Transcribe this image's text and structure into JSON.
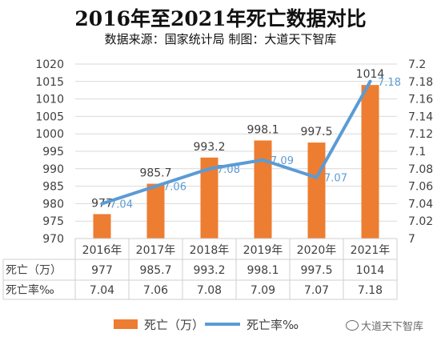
{
  "title": "2016年至2021年死亡数据对比",
  "subtitle": "数据来源：国家统计局    制图：大道天下智库",
  "watermark": "大道天下智库",
  "colors": {
    "bar": "#ed7d31",
    "line": "#5b9bd5",
    "line_label": "#5b9bd5",
    "grid": "#d9d9d9",
    "text": "#404040"
  },
  "chart_data": {
    "type": "bar",
    "categories": [
      "2016年",
      "2017年",
      "2018年",
      "2019年",
      "2020年",
      "2021年"
    ],
    "series": [
      {
        "name": "死亡（万）",
        "type": "bar",
        "axis": "left",
        "values": [
          977,
          985.7,
          993.2,
          998.1,
          997.5,
          1014
        ],
        "labels": [
          "977",
          "985.7",
          "993.2",
          "998.1",
          "997.5",
          "1014"
        ]
      },
      {
        "name": "死亡率‰",
        "type": "line",
        "axis": "right",
        "values": [
          7.04,
          7.06,
          7.08,
          7.09,
          7.07,
          7.18
        ],
        "labels": [
          "7.04",
          "7.06",
          "7.08",
          "7.09",
          "7.07",
          "7.18"
        ]
      }
    ],
    "y_left": {
      "range": [
        970,
        1020
      ],
      "ticks": [
        "970",
        "975",
        "980",
        "985",
        "990",
        "995",
        "1000",
        "1005",
        "1010",
        "1015",
        "1020"
      ]
    },
    "y_right": {
      "range": [
        7,
        7.2
      ],
      "ticks": [
        "7",
        "7.02",
        "7.04",
        "7.06",
        "7.08",
        "7.1",
        "7.12",
        "7.14",
        "7.16",
        "7.18",
        "7.2"
      ]
    },
    "grid": true,
    "data_table": {
      "rows": [
        {
          "header": "死亡（万）",
          "cells": [
            "977",
            "985.7",
            "993.2",
            "998.1",
            "997.5",
            "1014"
          ]
        },
        {
          "header": "死亡率‰",
          "cells": [
            "7.04",
            "7.06",
            "7.08",
            "7.09",
            "7.07",
            "7.18"
          ]
        }
      ]
    },
    "legend": {
      "position": "bottom",
      "items": [
        "死亡（万）",
        "死亡率‰"
      ]
    }
  }
}
